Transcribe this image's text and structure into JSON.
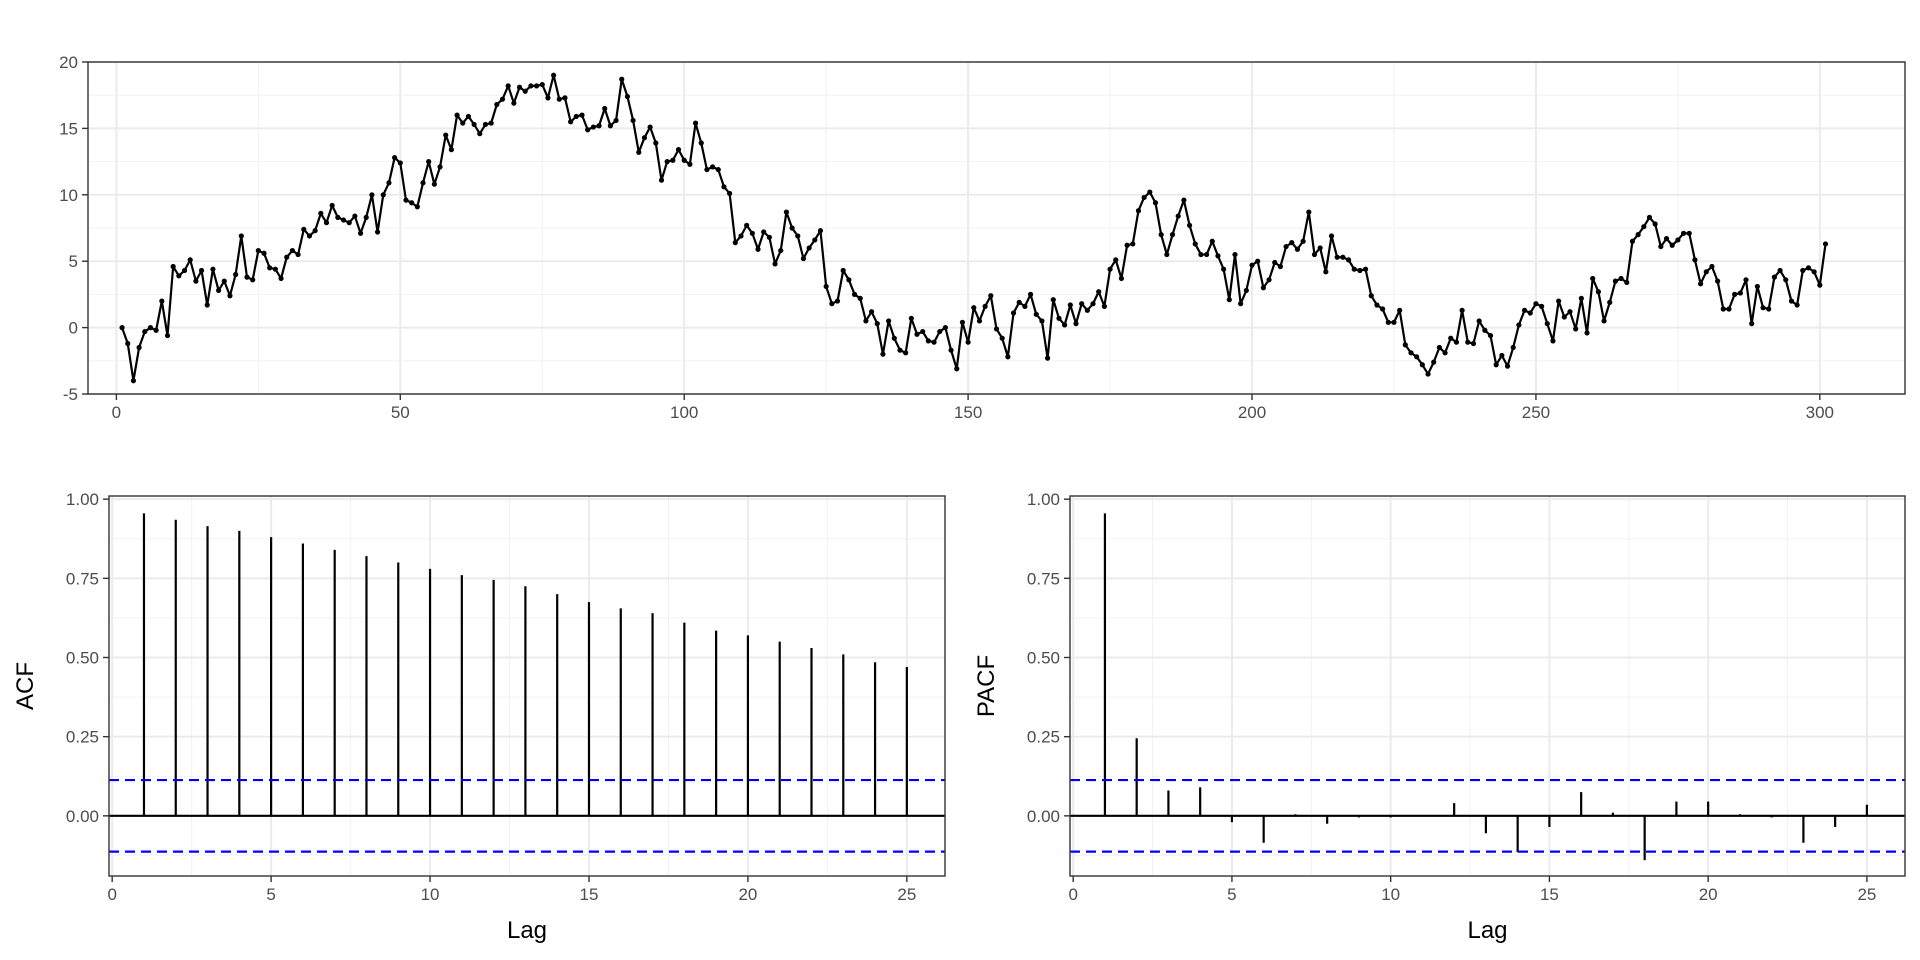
{
  "chart_data": [
    {
      "id": "series",
      "type": "line",
      "title": "",
      "xlabel": "",
      "ylabel": "",
      "x_start": 1,
      "xlim": [
        -5,
        315
      ],
      "ylim": [
        -5,
        20
      ],
      "xticks": [
        0,
        50,
        100,
        150,
        200,
        250,
        300
      ],
      "yticks": [
        -5,
        0,
        5,
        10,
        15,
        20
      ],
      "grid": true,
      "color": "#000000",
      "values": [
        0,
        -1.2,
        -4,
        -1.5,
        -0.3,
        0,
        -0.2,
        2,
        -0.6,
        4.6,
        3.9,
        4.3,
        5.1,
        3.5,
        4.3,
        1.7,
        4.4,
        2.8,
        3.5,
        2.4,
        4,
        6.9,
        3.8,
        3.6,
        5.8,
        5.6,
        4.5,
        4.4,
        3.7,
        5.3,
        5.8,
        5.5,
        7.4,
        6.9,
        7.3,
        8.6,
        7.9,
        9.2,
        8.3,
        8.1,
        7.9,
        8.4,
        7.1,
        8.3,
        10,
        7.2,
        10,
        10.9,
        12.8,
        12.4,
        9.6,
        9.4,
        9.1,
        10.9,
        12.5,
        10.8,
        12.1,
        14.5,
        13.4,
        16,
        15.4,
        15.9,
        15.3,
        14.6,
        15.3,
        15.4,
        16.8,
        17.2,
        18.2,
        16.9,
        18.1,
        17.8,
        18.2,
        18.2,
        18.3,
        17.3,
        19,
        17.2,
        17.3,
        15.5,
        15.9,
        16,
        14.9,
        15.1,
        15.2,
        16.5,
        15.2,
        15.6,
        18.7,
        17.4,
        15.6,
        13.2,
        14.3,
        15.1,
        13.9,
        11.1,
        12.5,
        12.6,
        13.4,
        12.6,
        12.3,
        15.4,
        13.9,
        11.9,
        12.1,
        11.9,
        10.6,
        10.1,
        6.4,
        6.9,
        7.7,
        7.1,
        5.9,
        7.2,
        6.8,
        4.8,
        5.8,
        8.7,
        7.5,
        6.9,
        5.2,
        6,
        6.6,
        7.3,
        3.1,
        1.8,
        2,
        4.3,
        3.6,
        2.5,
        2.2,
        0.5,
        1.2,
        0.3,
        -2,
        0.5,
        -0.8,
        -1.7,
        -1.9,
        0.7,
        -0.5,
        -0.3,
        -1,
        -1.1,
        -0.3,
        0,
        -1.7,
        -3.1,
        0.4,
        -1.1,
        1.5,
        0.5,
        1.6,
        2.4,
        -0.1,
        -0.8,
        -2.2,
        1.1,
        1.9,
        1.6,
        2.5,
        1,
        0.5,
        -2.3,
        2.1,
        0.7,
        0.2,
        1.7,
        0.3,
        1.8,
        1.3,
        1.8,
        2.7,
        1.6,
        4.4,
        5.1,
        3.7,
        6.2,
        6.3,
        8.8,
        9.8,
        10.2,
        9.4,
        7,
        5.5,
        7,
        8.4,
        9.6,
        7.7,
        6.3,
        5.5,
        5.5,
        6.5,
        5.4,
        4.4,
        2.1,
        5.5,
        1.8,
        2.8,
        4.7,
        5,
        3,
        3.6,
        4.9,
        4.6,
        6.1,
        6.4,
        5.9,
        6.5,
        8.7,
        5.5,
        6,
        4.2,
        6.9,
        5.3,
        5.3,
        5.1,
        4.4,
        4.3,
        4.4,
        2.4,
        1.7,
        1.4,
        0.4,
        0.4,
        1.3,
        -1.3,
        -1.9,
        -2.2,
        -2.8,
        -3.5,
        -2.6,
        -1.5,
        -1.9,
        -0.8,
        -1.1,
        1.3,
        -1.1,
        -1.2,
        0.5,
        -0.2,
        -0.6,
        -2.8,
        -2.1,
        -2.9,
        -1.5,
        0.2,
        1.3,
        1.1,
        1.8,
        1.6,
        0.3,
        -1,
        2,
        0.8,
        1.2,
        -0.1,
        2.2,
        -0.4,
        3.7,
        2.7,
        0.5,
        1.9,
        3.5,
        3.7,
        3.4,
        6.5,
        7,
        7.6,
        8.3,
        7.8,
        6.1,
        6.7,
        6.2,
        6.6,
        7.1,
        7.1,
        5.1,
        3.3,
        4.2,
        4.6,
        3.5,
        1.4,
        1.4,
        2.5,
        2.6,
        3.6,
        0.3,
        3.1,
        1.5,
        1.4,
        3.8,
        4.3,
        3.6,
        2,
        1.7,
        4.3,
        4.5,
        4.2,
        3.2,
        6.3
      ]
    },
    {
      "id": "acf",
      "type": "bar",
      "title": "",
      "xlabel": "Lag",
      "ylabel": "ACF",
      "xlim": [
        -0.1,
        26.2
      ],
      "ylim": [
        -0.19,
        1.01
      ],
      "xticks": [
        0,
        5,
        10,
        15,
        20,
        25
      ],
      "yticks": [
        0,
        0.25,
        0.5,
        0.75,
        1.0
      ],
      "ytick_labels": [
        "0.00",
        "0.25",
        "0.50",
        "0.75",
        "1.00"
      ],
      "grid": true,
      "ci": 0.113,
      "ci_color": "#0000ff",
      "lags": [
        1,
        2,
        3,
        4,
        5,
        6,
        7,
        8,
        9,
        10,
        11,
        12,
        13,
        14,
        15,
        16,
        17,
        18,
        19,
        20,
        21,
        22,
        23,
        24,
        25
      ],
      "values": [
        0.955,
        0.935,
        0.915,
        0.9,
        0.88,
        0.86,
        0.84,
        0.82,
        0.8,
        0.78,
        0.76,
        0.745,
        0.725,
        0.7,
        0.675,
        0.655,
        0.64,
        0.61,
        0.585,
        0.57,
        0.55,
        0.53,
        0.51,
        0.485,
        0.47
      ]
    },
    {
      "id": "pacf",
      "type": "bar",
      "title": "",
      "xlabel": "Lag",
      "ylabel": "PACF",
      "xlim": [
        -0.1,
        26.2
      ],
      "ylim": [
        -0.19,
        1.01
      ],
      "xticks": [
        0,
        5,
        10,
        15,
        20,
        25
      ],
      "yticks": [
        0,
        0.25,
        0.5,
        0.75,
        1.0
      ],
      "ytick_labels": [
        "0.00",
        "0.25",
        "0.50",
        "0.75",
        "1.00"
      ],
      "grid": true,
      "ci": 0.113,
      "ci_color": "#0000ff",
      "lags": [
        1,
        2,
        3,
        4,
        5,
        6,
        7,
        8,
        9,
        10,
        11,
        12,
        13,
        14,
        15,
        16,
        17,
        18,
        19,
        20,
        21,
        22,
        23,
        24,
        25
      ],
      "values": [
        0.955,
        0.245,
        0.08,
        0.09,
        -0.02,
        -0.085,
        0.005,
        -0.025,
        -0.005,
        -0.005,
        0,
        0.04,
        -0.055,
        -0.115,
        -0.035,
        0.075,
        0.01,
        -0.14,
        0.045,
        0.045,
        0.005,
        -0.005,
        -0.085,
        -0.035,
        0.035
      ]
    }
  ]
}
